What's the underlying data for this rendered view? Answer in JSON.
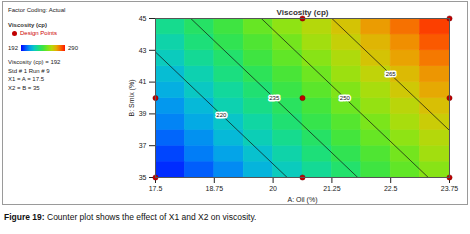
{
  "chart_data": {
    "type": "contour",
    "title": "Viscosity (cp)",
    "caption": "Figure 19: Counter plot shows the effect of X1 and X2 on viscosity.",
    "x_label": "A: Oil (%)",
    "y_label": "B: Smix (%)",
    "xlim": [
      17.5,
      23.75
    ],
    "xticks": [
      17.5,
      18.75,
      20,
      21.25,
      22.5,
      23.75
    ],
    "ylim": [
      35,
      45
    ],
    "yticks": [
      35,
      37,
      39,
      41,
      43,
      45
    ],
    "grid": false,
    "side_panel": {
      "factor_coding": "Factor Coding: Actual",
      "response": "Viscosity (cp)",
      "design_points_label": "Design Points",
      "info": [
        "Viscosity (cp) = 192",
        "Std # 1 Run # 9",
        "X1 = A = 17.5",
        "X2 = B = 35"
      ]
    },
    "colorbar": {
      "range": [
        192,
        290
      ],
      "ticks": [
        192,
        290
      ]
    },
    "cells": {
      "x_edges": [
        17.5,
        18.125,
        18.75,
        19.375,
        20,
        20.625,
        21.25,
        21.875,
        22.5,
        23.125,
        23.75
      ],
      "y_edges": [
        35,
        36,
        37,
        38,
        39,
        40,
        41,
        42,
        43,
        44,
        45
      ],
      "values": [
        [
          197,
          203,
          209,
          216,
          222,
          228,
          234,
          241,
          247,
          253
        ],
        [
          200,
          207,
          213,
          219,
          225,
          232,
          238,
          244,
          250,
          257
        ],
        [
          204,
          210,
          217,
          223,
          229,
          235,
          242,
          248,
          254,
          260
        ],
        [
          208,
          214,
          220,
          226,
          233,
          239,
          245,
          251,
          258,
          264
        ],
        [
          211,
          217,
          224,
          230,
          236,
          242,
          249,
          255,
          261,
          267
        ],
        [
          215,
          221,
          227,
          233,
          240,
          246,
          252,
          258,
          265,
          271
        ],
        [
          218,
          224,
          231,
          237,
          243,
          249,
          256,
          262,
          268,
          274
        ],
        [
          222,
          228,
          234,
          241,
          247,
          253,
          259,
          266,
          272,
          278
        ],
        [
          225,
          232,
          238,
          244,
          250,
          257,
          263,
          269,
          275,
          282
        ],
        [
          229,
          235,
          241,
          248,
          254,
          260,
          266,
          273,
          279,
          285
        ]
      ]
    },
    "contours": [
      {
        "level": 220,
        "points": [
          [
            20.3,
            35
          ],
          [
            17.5,
            42.89
          ]
        ]
      },
      {
        "level": 235,
        "points": [
          [
            21.8,
            35
          ],
          [
            18.25,
            45
          ]
        ]
      },
      {
        "level": 250,
        "points": [
          [
            23.3,
            35
          ],
          [
            19.75,
            45
          ]
        ]
      },
      {
        "level": 265,
        "points": [
          [
            23.75,
            37.96
          ],
          [
            21.25,
            45
          ]
        ]
      }
    ],
    "design_points": {
      "x": [
        17.5,
        17.5,
        20.625,
        20.625,
        20.625,
        23.75,
        23.75,
        23.75
      ],
      "y": [
        35,
        40,
        35,
        40,
        45,
        35,
        40,
        45
      ]
    }
  }
}
